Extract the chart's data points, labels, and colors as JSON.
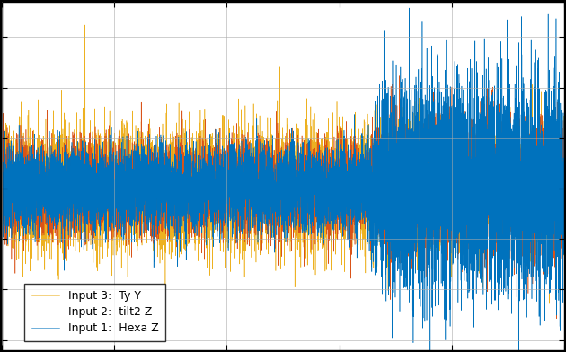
{
  "title": "",
  "legend_labels": [
    "Input 1:  Hexa Z",
    "Input 2:  tilt2 Z",
    "Input 3:  Ty Y"
  ],
  "line_colors": [
    "#0072BD",
    "#D95319",
    "#EDB120"
  ],
  "background_color": "#ffffff",
  "figure_color": "#000000",
  "n_points": 10000,
  "seed": 1,
  "xlim": [
    0,
    10000
  ],
  "ylim": [
    -1.6,
    1.85
  ],
  "grid": true,
  "legend_loc": "lower left"
}
